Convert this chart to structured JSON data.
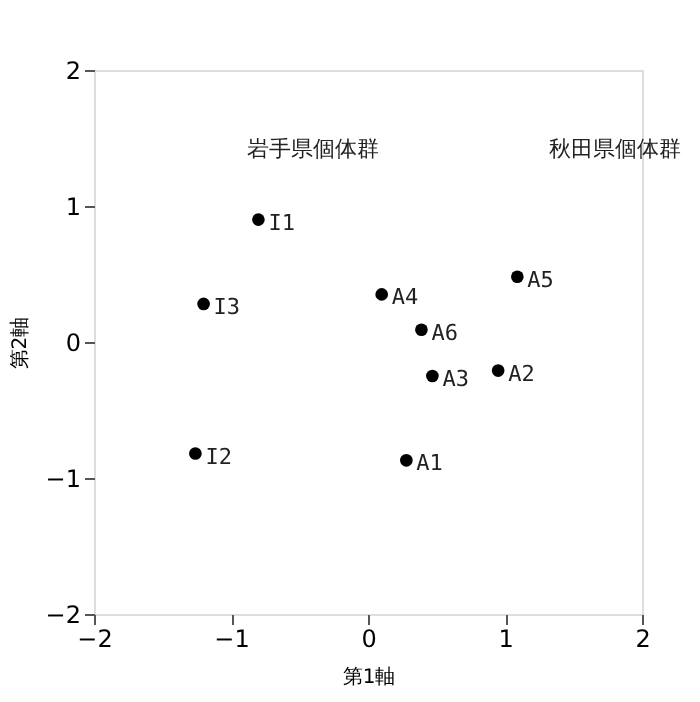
{
  "chart_data": {
    "type": "scatter",
    "xlabel": "第1軸",
    "ylabel": "第2軸",
    "xlim": [
      -2,
      2
    ],
    "ylim": [
      -2,
      2
    ],
    "xticks": [
      -2,
      -1,
      0,
      1,
      2
    ],
    "yticks": [
      -2,
      -1,
      0,
      1,
      2
    ],
    "grid": false,
    "marker": "circle",
    "series": [
      {
        "color": "#000000",
        "x": [
          -0.8,
          -1.26,
          -1.2,
          0.28,
          0.95,
          0.47,
          0.1,
          1.09,
          0.39
        ],
        "values": [
          0.9,
          -0.82,
          0.28,
          -0.87,
          -0.21,
          -0.25,
          0.35,
          0.48,
          0.09
        ],
        "value_labels": [
          "I1",
          "I2",
          "I3",
          "A1",
          "A2",
          "A3",
          "A4",
          "A5",
          "A6"
        ]
      }
    ],
    "annotations": [
      "岩手県個体群",
      "秋田県個体群"
    ]
  }
}
